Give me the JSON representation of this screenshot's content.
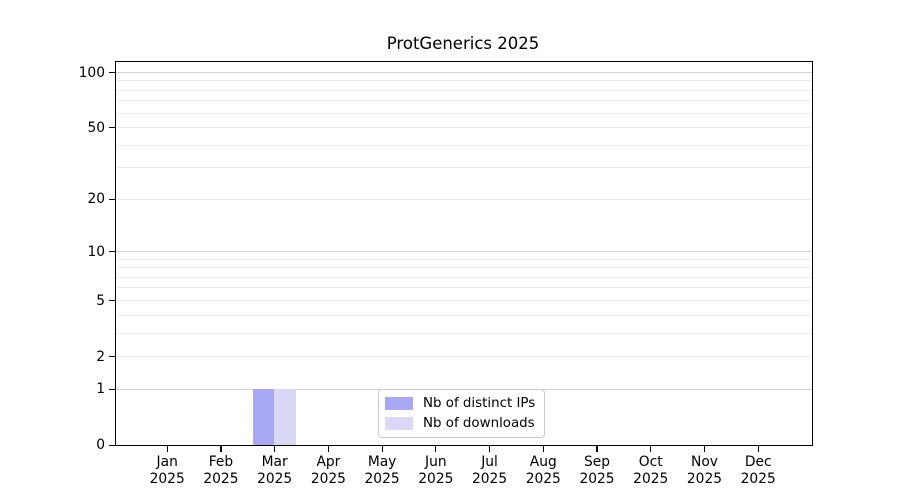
{
  "chart_data": {
    "type": "bar",
    "title": "ProtGenerics 2025",
    "xlabel": "",
    "ylabel": "",
    "categories": [
      "Jan 2025",
      "Feb 2025",
      "Mar 2025",
      "Apr 2025",
      "May 2025",
      "Jun 2025",
      "Jul 2025",
      "Aug 2025",
      "Sep 2025",
      "Oct 2025",
      "Nov 2025",
      "Dec 2025"
    ],
    "series": [
      {
        "name": "Nb of distinct IPs",
        "color": "#a8a8f4",
        "values": [
          0,
          0,
          1,
          0,
          0,
          0,
          0,
          0,
          0,
          0,
          0,
          0
        ]
      },
      {
        "name": "Nb of downloads",
        "color": "#d9d9f7",
        "values": [
          0,
          0,
          1,
          0,
          0,
          0,
          0,
          0,
          0,
          0,
          0,
          0
        ]
      }
    ],
    "y_scale": "log10(1+y)",
    "ylim": [
      0,
      114
    ],
    "y_tick_values": [
      0,
      1,
      2,
      5,
      10,
      20,
      50,
      100
    ],
    "y_major_gridlines": [
      1,
      10,
      100
    ],
    "y_minor_gridlines": [
      2,
      3,
      4,
      5,
      6,
      7,
      8,
      9,
      20,
      30,
      40,
      50,
      60,
      70,
      80,
      90
    ],
    "grid": "horizontal",
    "legend_position": "lower center",
    "colors": {
      "axis": "#000000",
      "text": "#000000",
      "gridline_major": "#d0d0d0",
      "gridline_minor": "#ececec",
      "legend_border": "#cccccc",
      "background": "#ffffff"
    }
  }
}
